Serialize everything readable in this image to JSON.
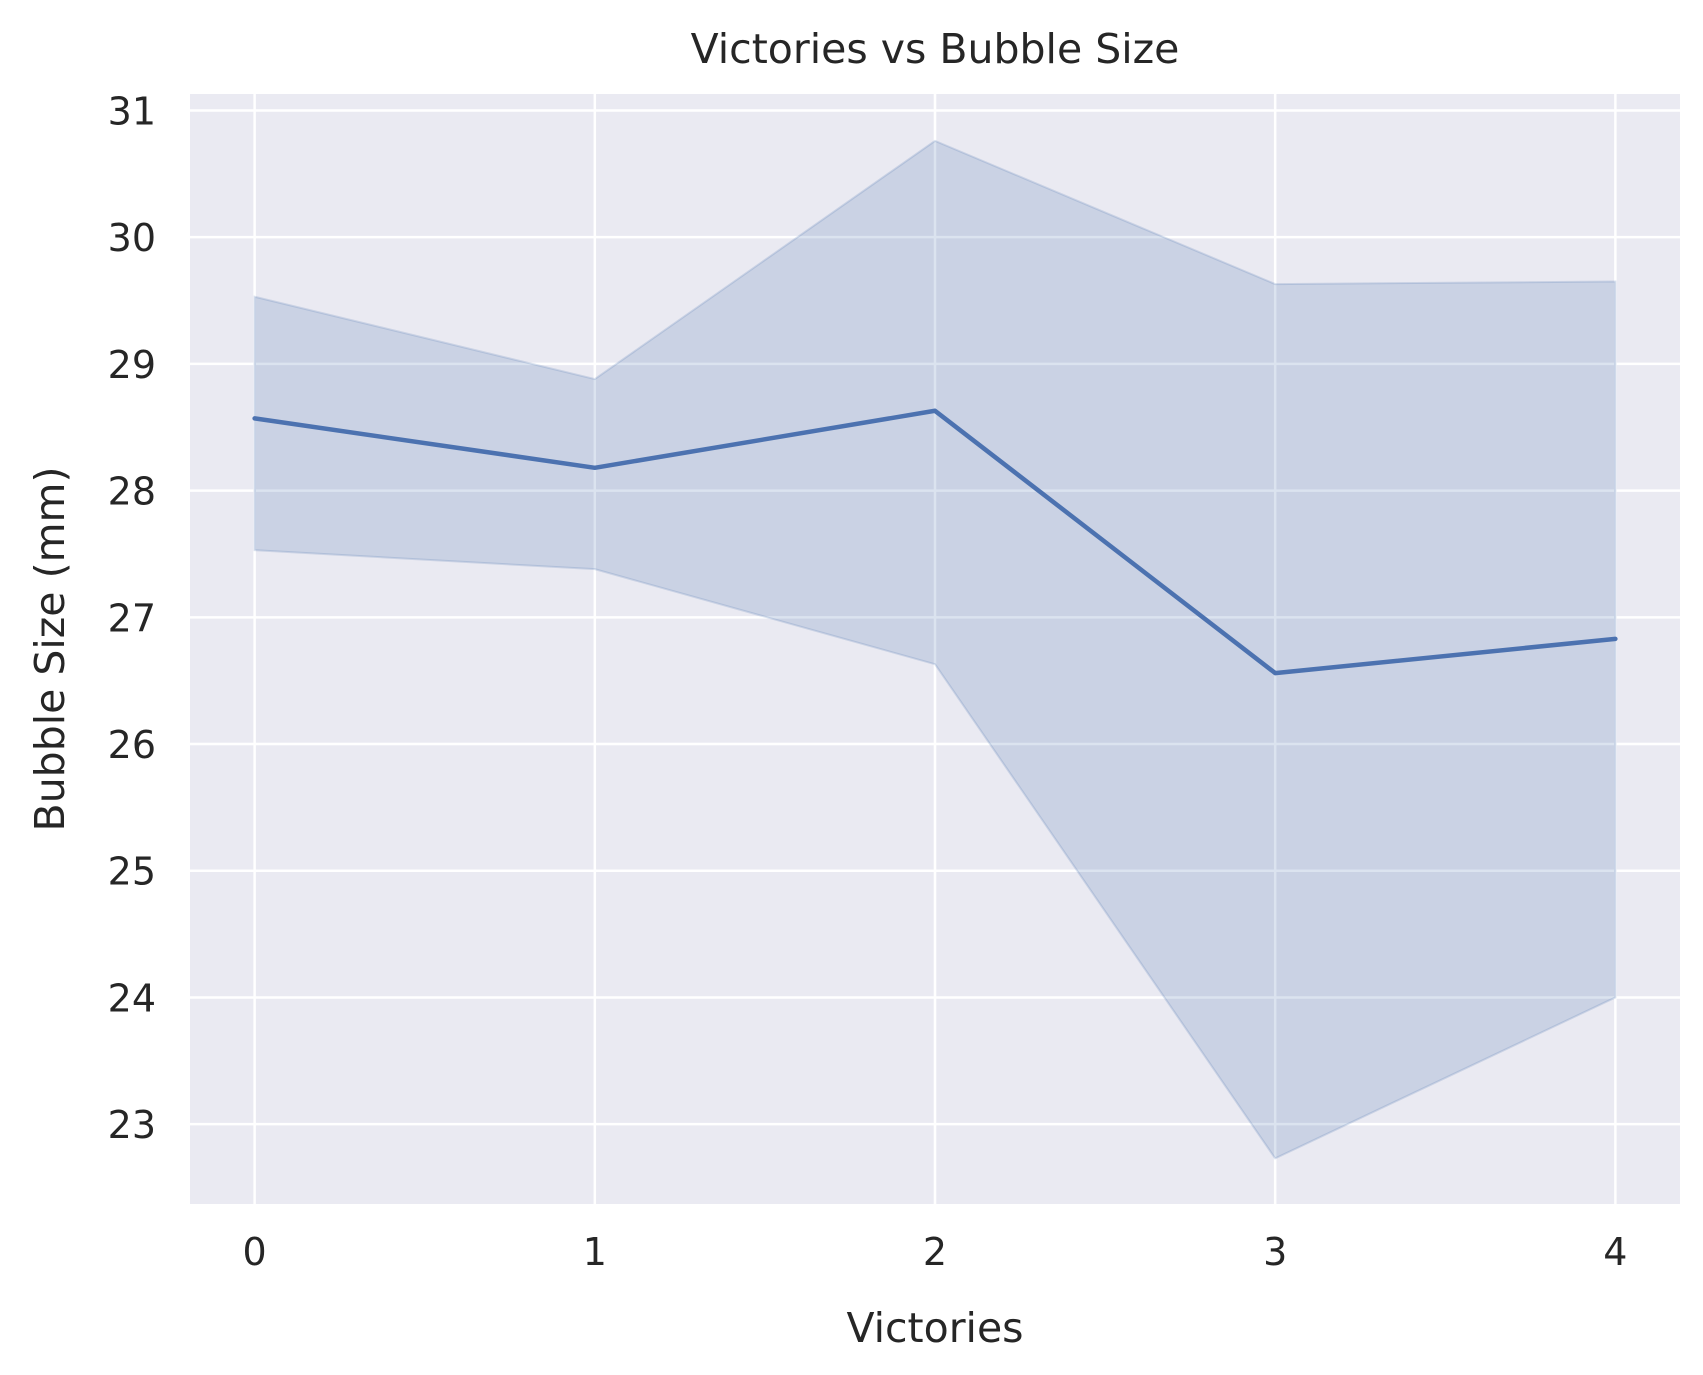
{
  "chart_data": {
    "type": "line",
    "title": "Victories vs Bubble Size",
    "xlabel": "Victories",
    "ylabel": "Bubble Size (mm)",
    "x": [
      0,
      1,
      2,
      3,
      4
    ],
    "x_ticks": [
      "0",
      "1",
      "2",
      "3",
      "4"
    ],
    "y_ticks": [
      "23",
      "24",
      "25",
      "26",
      "27",
      "28",
      "29",
      "30",
      "31"
    ],
    "y_tick_values": [
      23,
      24,
      25,
      26,
      27,
      28,
      29,
      30,
      31
    ],
    "xlim": [
      -0.19,
      4.19
    ],
    "ylim": [
      22.37,
      31.13
    ],
    "grid": true,
    "series": [
      {
        "values": [
          28.57,
          28.18,
          28.63,
          26.56,
          26.83
        ],
        "ci_lower": [
          27.53,
          27.38,
          26.63,
          22.73,
          24.0
        ],
        "ci_upper": [
          29.53,
          28.88,
          30.76,
          29.63,
          29.65
        ]
      }
    ],
    "colors": {
      "line": "#4c72b0",
      "band": "#4c72b0",
      "background": "#eaeaf2",
      "grid": "#ffffff"
    }
  }
}
